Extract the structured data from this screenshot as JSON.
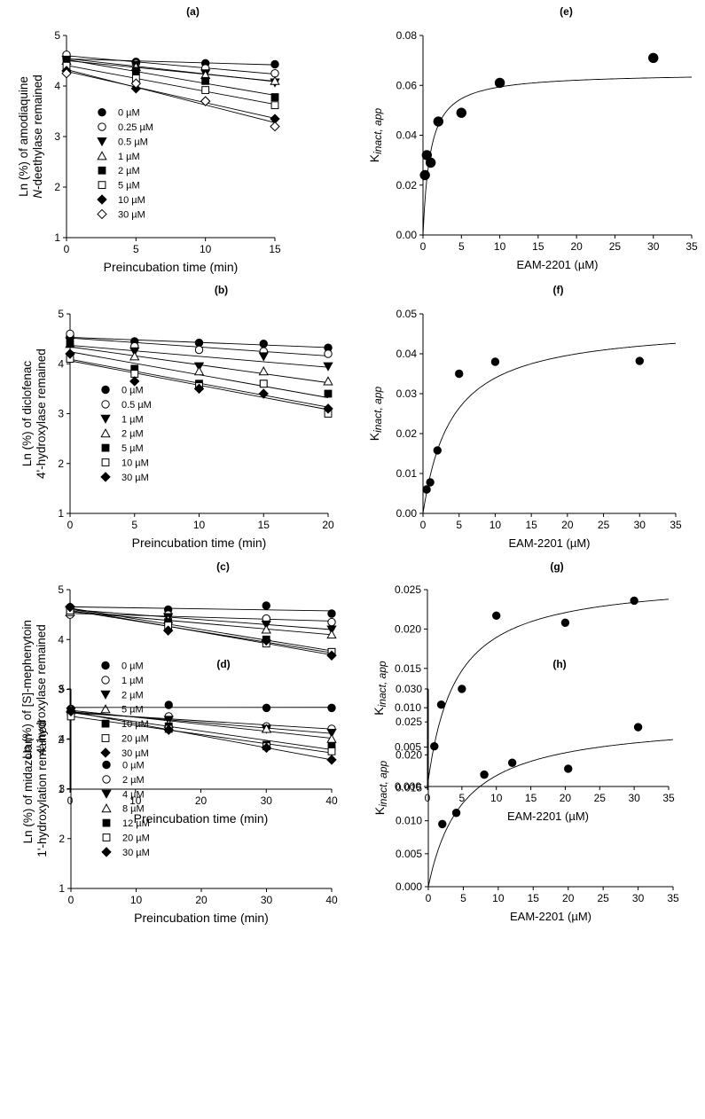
{
  "chart_data": [
    {
      "panel": "(a)",
      "type": "scatter",
      "xlabel": "Preincubation time (min)",
      "ylabel": [
        "Ln (%) of amodiaquine",
        "N-deethylase remained"
      ],
      "xlim": [
        0,
        15
      ],
      "ylim": [
        1,
        5
      ],
      "xticks": [
        "0",
        "5",
        "10",
        "15"
      ],
      "yticks": [
        "1",
        "2",
        "3",
        "4",
        "5"
      ],
      "x": [
        0,
        5,
        10,
        15
      ],
      "series": [
        {
          "name": "0 µM",
          "marker": "circle-filled",
          "values": [
            4.55,
            4.48,
            4.45,
            4.43
          ]
        },
        {
          "name": "0.25 µM",
          "marker": "circle-open",
          "values": [
            4.62,
            4.45,
            4.35,
            4.25
          ]
        },
        {
          "name": "0.5 µM",
          "marker": "tri-down-filled",
          "values": [
            4.52,
            4.42,
            4.25,
            4.07
          ]
        },
        {
          "name": "1 µM",
          "marker": "tri-up-open",
          "values": [
            4.5,
            4.38,
            4.22,
            4.1
          ]
        },
        {
          "name": "2 µM",
          "marker": "square-filled",
          "values": [
            4.5,
            4.3,
            4.1,
            3.78
          ]
        },
        {
          "name": "5 µM",
          "marker": "square-open",
          "values": [
            4.4,
            4.15,
            3.92,
            3.62
          ]
        },
        {
          "name": "10 µM",
          "marker": "diamond-filled",
          "values": [
            4.3,
            3.95,
            3.7,
            3.35
          ]
        },
        {
          "name": "30 µM",
          "marker": "diamond-open",
          "values": [
            4.25,
            4.05,
            3.7,
            3.2
          ]
        }
      ]
    },
    {
      "panel": "(b)",
      "type": "scatter",
      "xlabel": "Preincubation time (min)",
      "ylabel": [
        "Ln (%) of diclofenac",
        "4'-hydroxylase remained"
      ],
      "xlim": [
        0,
        20
      ],
      "ylim": [
        1,
        5
      ],
      "xticks": [
        "0",
        "5",
        "10",
        "15",
        "20"
      ],
      "yticks": [
        "1",
        "2",
        "3",
        "4",
        "5"
      ],
      "x": [
        0,
        5,
        10,
        15,
        20
      ],
      "series": [
        {
          "name": "0 µM",
          "marker": "circle-filled",
          "values": [
            4.55,
            4.45,
            4.42,
            4.4,
            4.32
          ]
        },
        {
          "name": "0.5 µM",
          "marker": "circle-open",
          "values": [
            4.6,
            4.35,
            4.28,
            4.25,
            4.2
          ]
        },
        {
          "name": "1 µM",
          "marker": "tri-down-filled",
          "values": [
            4.45,
            4.25,
            3.95,
            4.15,
            3.95
          ]
        },
        {
          "name": "2 µM",
          "marker": "tri-up-open",
          "values": [
            4.4,
            4.15,
            3.85,
            3.85,
            3.65
          ]
        },
        {
          "name": "5 µM",
          "marker": "square-filled",
          "values": [
            4.4,
            3.9,
            3.6,
            3.6,
            3.4
          ]
        },
        {
          "name": "10 µM",
          "marker": "square-open",
          "values": [
            4.1,
            3.8,
            3.55,
            3.6,
            3.0
          ]
        },
        {
          "name": "30 µM",
          "marker": "diamond-filled",
          "values": [
            4.2,
            3.65,
            3.5,
            3.4,
            3.1
          ]
        }
      ]
    },
    {
      "panel": "(c)",
      "type": "scatter",
      "xlabel": "Preincubation time (min)",
      "ylabel": [
        "Ln (%) of [S]-mephenytoin",
        "4'-hydroxylase remained"
      ],
      "xlim": [
        0,
        40
      ],
      "ylim": [
        1,
        5
      ],
      "xticks": [
        "0",
        "10",
        "20",
        "30",
        "40"
      ],
      "yticks": [
        "1",
        "2",
        "3",
        "4",
        "5"
      ],
      "x": [
        0,
        15,
        30,
        40
      ],
      "series": [
        {
          "name": "0 µM",
          "marker": "circle-filled",
          "values": [
            4.65,
            4.6,
            4.68,
            4.52
          ]
        },
        {
          "name": "1 µM",
          "marker": "circle-open",
          "values": [
            4.5,
            4.5,
            4.42,
            4.35
          ]
        },
        {
          "name": "2 µM",
          "marker": "tri-down-filled",
          "values": [
            4.6,
            4.45,
            4.3,
            4.2
          ]
        },
        {
          "name": "5 µM",
          "marker": "tri-up-open",
          "values": [
            4.55,
            4.4,
            4.2,
            4.1
          ]
        },
        {
          "name": "10 µM",
          "marker": "square-filled",
          "values": [
            4.6,
            4.35,
            4.0,
            3.75
          ]
        },
        {
          "name": "20 µM",
          "marker": "square-open",
          "values": [
            4.58,
            4.28,
            3.92,
            3.75
          ]
        },
        {
          "name": "30 µM",
          "marker": "diamond-filled",
          "values": [
            4.65,
            4.18,
            3.98,
            3.68
          ]
        }
      ]
    },
    {
      "panel": "(d)",
      "type": "scatter",
      "xlabel": "Preincubation time (min)",
      "ylabel": [
        "Ln (%) of midazolam",
        "1'-hydroxylation remained"
      ],
      "xlim": [
        0,
        40
      ],
      "ylim": [
        1,
        5
      ],
      "xticks": [
        "0",
        "10",
        "20",
        "30",
        "40"
      ],
      "yticks": [
        "1",
        "2",
        "3",
        "4",
        "5"
      ],
      "x": [
        0,
        15,
        30,
        40
      ],
      "series": [
        {
          "name": "0 µM",
          "marker": "circle-filled",
          "values": [
            4.6,
            4.68,
            4.62,
            4.62
          ]
        },
        {
          "name": "2 µM",
          "marker": "circle-open",
          "values": [
            4.5,
            4.45,
            4.25,
            4.2
          ]
        },
        {
          "name": "4 µM",
          "marker": "tri-down-filled",
          "values": [
            4.55,
            4.38,
            4.2,
            4.12
          ]
        },
        {
          "name": "8 µM",
          "marker": "tri-up-open",
          "values": [
            4.6,
            4.3,
            4.2,
            4.0
          ]
        },
        {
          "name": "12 µM",
          "marker": "square-filled",
          "values": [
            4.55,
            4.25,
            3.88,
            3.85
          ]
        },
        {
          "name": "20 µM",
          "marker": "square-open",
          "values": [
            4.45,
            4.2,
            3.85,
            3.75
          ]
        },
        {
          "name": "30 µM",
          "marker": "diamond-filled",
          "values": [
            4.55,
            4.18,
            3.82,
            3.58
          ]
        }
      ]
    },
    {
      "panel": "(e)",
      "type": "scatter",
      "xlabel": "EAM-2201 (µM)",
      "ylabel": "Kinact, app",
      "xlim": [
        0,
        35
      ],
      "ylim": [
        0,
        0.08
      ],
      "xticks": [
        "0",
        "5",
        "10",
        "15",
        "20",
        "25",
        "30",
        "35"
      ],
      "yticks": [
        "0.00",
        "0.02",
        "0.04",
        "0.06",
        "0.08"
      ],
      "x": [
        0.25,
        0.5,
        1,
        2,
        5,
        10,
        30
      ],
      "values": [
        0.024,
        0.032,
        0.029,
        0.0455,
        0.049,
        0.061,
        0.071
      ],
      "fit": {
        "kinact_max": 0.065,
        "KI": 0.95
      }
    },
    {
      "panel": "(f)",
      "type": "scatter",
      "xlabel": "EAM-2201 (µM)",
      "ylabel": "Kinact, app",
      "xlim": [
        0,
        35
      ],
      "ylim": [
        0,
        0.05
      ],
      "xticks": [
        "0",
        "5",
        "10",
        "15",
        "20",
        "25",
        "30",
        "35"
      ],
      "yticks": [
        "0.00",
        "0.01",
        "0.02",
        "0.03",
        "0.04",
        "0.05"
      ],
      "x": [
        0.5,
        1,
        2,
        5,
        10,
        30
      ],
      "values": [
        0.006,
        0.0078,
        0.0158,
        0.035,
        0.038,
        0.0382
      ],
      "fit": {
        "kinact_max": 0.0475,
        "KI": 4.0
      }
    },
    {
      "panel": "(g)",
      "type": "scatter",
      "xlabel": "EAM-2201 (µM)",
      "ylabel": "Kinact, app",
      "xlim": [
        0,
        35
      ],
      "ylim": [
        0,
        0.025
      ],
      "xticks": [
        "0",
        "5",
        "10",
        "15",
        "20",
        "25",
        "30",
        "35"
      ],
      "yticks": [
        "0.000",
        "0.005",
        "0.010",
        "0.015",
        "0.020",
        "0.025"
      ],
      "x": [
        1,
        2,
        5,
        10,
        20,
        30
      ],
      "values": [
        0.0051,
        0.0104,
        0.0124,
        0.0217,
        0.0208,
        0.0236
      ],
      "fit": {
        "kinact_max": 0.0265,
        "KI": 4.0
      }
    },
    {
      "panel": "(h)",
      "type": "scatter",
      "xlabel": "EAM-2201 (µM)",
      "ylabel": "Kinact, app",
      "xlim": [
        0,
        35
      ],
      "ylim": [
        0,
        0.03
      ],
      "xticks": [
        "0",
        "5",
        "10",
        "15",
        "20",
        "25",
        "30",
        "35"
      ],
      "yticks": [
        "0.000",
        "0.005",
        "0.010",
        "0.015",
        "0.020",
        "0.025",
        "0.030"
      ],
      "x": [
        2,
        4,
        8,
        12,
        20,
        30
      ],
      "values": [
        0.0095,
        0.0112,
        0.017,
        0.0188,
        0.0179,
        0.0242
      ],
      "fit": {
        "kinact_max": 0.0255,
        "KI": 5.0
      }
    }
  ]
}
